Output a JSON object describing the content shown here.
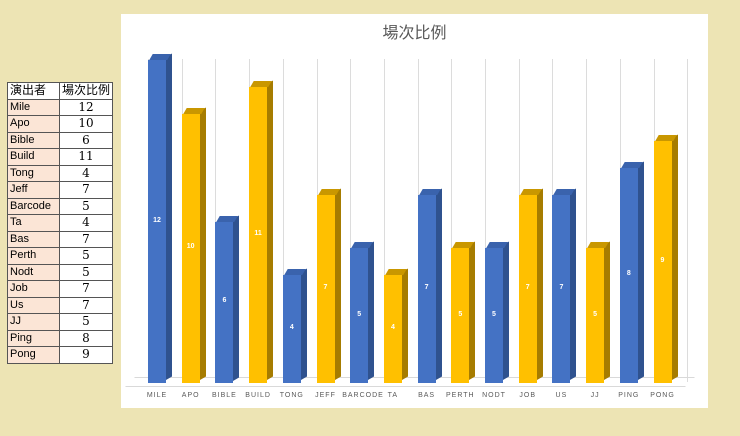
{
  "table": {
    "headers": [
      "演出者",
      "場次比例"
    ],
    "rows": [
      {
        "name": "Mile",
        "value": "12"
      },
      {
        "name": "Apo",
        "value": "10"
      },
      {
        "name": "Bible",
        "value": "6"
      },
      {
        "name": "Build",
        "value": "11"
      },
      {
        "name": "Tong",
        "value": "4"
      },
      {
        "name": "Jeff",
        "value": "7"
      },
      {
        "name": "Barcode",
        "value": "5"
      },
      {
        "name": "Ta",
        "value": "4"
      },
      {
        "name": "Bas",
        "value": "7"
      },
      {
        "name": "Perth",
        "value": "5"
      },
      {
        "name": "Nodt",
        "value": "5"
      },
      {
        "name": "Job",
        "value": "7"
      },
      {
        "name": "Us",
        "value": "7"
      },
      {
        "name": "JJ",
        "value": "5"
      },
      {
        "name": "Ping",
        "value": "8"
      },
      {
        "name": "Pong",
        "value": "9"
      }
    ]
  },
  "colors": {
    "blue_front": "#4472c4",
    "blue_side": "#2f528f",
    "blue_top": "#3a63ad",
    "gold_front": "#ffc000",
    "gold_side": "#a67c00",
    "gold_top": "#c99700",
    "background": "#ede4b4",
    "name_cell": "#fbe5d6"
  },
  "chart_data": {
    "type": "bar",
    "title": "場次比例",
    "categories": [
      "MILE",
      "APO",
      "BIBLE",
      "BUILD",
      "TONG",
      "JEFF",
      "BARCODE",
      "TA",
      "BAS",
      "PERTH",
      "NODT",
      "JOB",
      "US",
      "JJ",
      "PING",
      "PONG"
    ],
    "values": [
      12,
      10,
      6,
      11,
      4,
      7,
      5,
      4,
      7,
      5,
      5,
      7,
      7,
      5,
      8,
      9
    ],
    "bar_colors": [
      "blue",
      "gold",
      "blue",
      "gold",
      "blue",
      "gold",
      "blue",
      "gold",
      "blue",
      "gold",
      "blue",
      "gold",
      "blue",
      "gold",
      "blue",
      "gold"
    ],
    "data_labels": true,
    "xlabel": "",
    "ylabel": "",
    "ylim": [
      0,
      12
    ],
    "grid": "vertical",
    "style": "3d-column",
    "legend": "none"
  }
}
